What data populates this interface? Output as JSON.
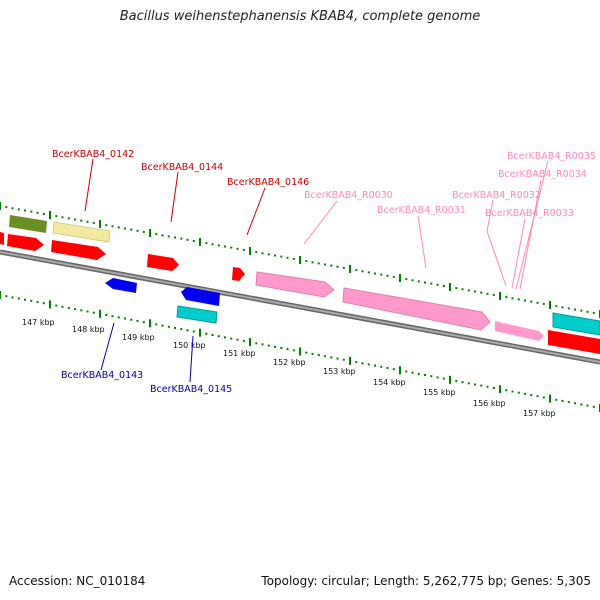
{
  "title": "Bacillus weihenstephanensis KBAB4, complete genome",
  "footer": {
    "accession": "Accession: NC_010184",
    "summary": "Topology: circular; Length: 5,262,775 bp; Genes: 5,305"
  },
  "colors": {
    "cds_forward": "#ff0000",
    "cds_reverse": "#0000ee",
    "rRNA": "#ff99cc",
    "tRNA_forward": "#00cccc",
    "other_green": "#6b8e23",
    "other_yellow": "#f2eaa0",
    "ticks": "#008000",
    "label_forward": "#cc0000",
    "label_reverse": "#0000aa",
    "label_rna": "#ff88bb",
    "backbone": "#888888"
  },
  "scale_ticks": [
    "147 kbp",
    "148 kbp",
    "149 kbp",
    "150 kbp",
    "151 kbp",
    "152 kbp",
    "153 kbp",
    "154 kbp",
    "155 kbp",
    "156 kbp",
    "157 kbp"
  ],
  "gene_labels": {
    "fwd": [
      "BcerKBAB4_0142",
      "BcerKBAB4_0144",
      "BcerKBAB4_0146"
    ],
    "rna": [
      "BcerKBAB4_R0030",
      "BcerKBAB4_R0031",
      "BcerKBAB4_R0032",
      "BcerKBAB4_R0033",
      "BcerKBAB4_R0034",
      "BcerKBAB4_R0035"
    ],
    "rev": [
      "BcerKBAB4_0143",
      "BcerKBAB4_0145"
    ]
  }
}
